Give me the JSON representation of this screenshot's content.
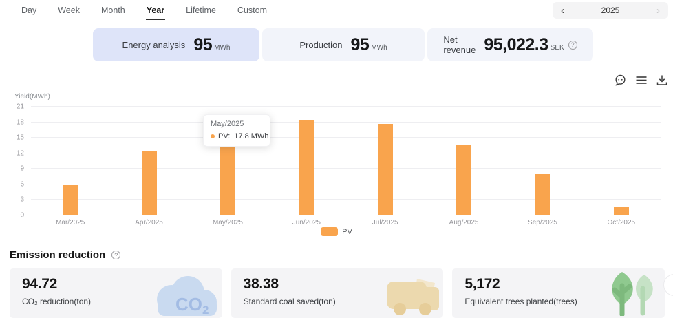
{
  "icons": {
    "chevron_left": "‹",
    "chevron_right": "›",
    "help": "?"
  },
  "header": {
    "tabs": [
      {
        "label": "Day",
        "active": false
      },
      {
        "label": "Week",
        "active": false
      },
      {
        "label": "Month",
        "active": false
      },
      {
        "label": "Year",
        "active": true
      },
      {
        "label": "Lifetime",
        "active": false
      },
      {
        "label": "Custom",
        "active": false
      }
    ],
    "year_selector": {
      "value": "2025"
    }
  },
  "stats": {
    "energy": {
      "label": "Energy analysis",
      "value": "95",
      "unit": "MWh"
    },
    "production": {
      "label": "Production",
      "value": "95",
      "unit": "MWh"
    },
    "revenue": {
      "label": "Net revenue",
      "value": "95,022.3",
      "unit": "SEK"
    }
  },
  "chart_toolbar": {
    "icons": [
      "chat-bubble-icon",
      "menu-icon",
      "download-icon"
    ]
  },
  "chart_data": {
    "type": "bar",
    "title": "",
    "ylabel": "Yield(MWh)",
    "xlabel": "",
    "categories": [
      "Mar/2025",
      "Apr/2025",
      "May/2025",
      "Jun/2025",
      "Jul/2025",
      "Aug/2025",
      "Sep/2025",
      "Oct/2025"
    ],
    "series": [
      {
        "name": "PV",
        "color": "#f9a44d",
        "values": [
          5.7,
          12.2,
          17.8,
          18.4,
          17.6,
          13.4,
          7.8,
          1.5
        ]
      }
    ],
    "ylim": [
      0,
      21
    ],
    "yticks": [
      0,
      3,
      6,
      9,
      12,
      15,
      18,
      21
    ],
    "grid": true,
    "legend_position": "bottom",
    "tooltip": {
      "category_index": 2,
      "title": "May/2025",
      "label": "PV:",
      "value": "17.8 MWh"
    }
  },
  "emission": {
    "title": "Emission reduction",
    "cards": [
      {
        "value": "94.72",
        "label": "CO₂ reduction(ton)",
        "icon": "co2-cloud-icon"
      },
      {
        "value": "38.38",
        "label": "Standard coal saved(ton)",
        "icon": "coal-truck-icon"
      },
      {
        "value": "5,172",
        "label": "Equivalent trees planted(trees)",
        "icon": "trees-icon"
      }
    ]
  },
  "colors": {
    "bar": "#f9a44d",
    "selected_chip": "#dee4f9",
    "chip": "#f2f4fa",
    "card": "#f4f4f6"
  }
}
